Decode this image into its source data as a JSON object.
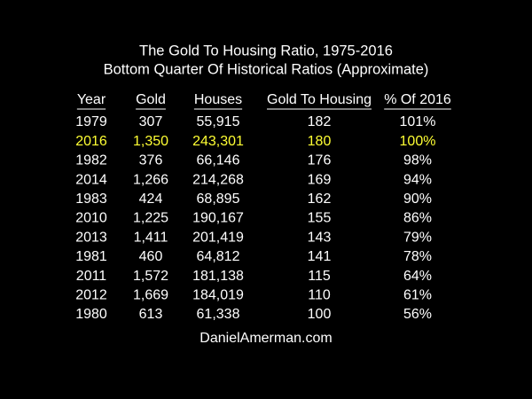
{
  "header": {
    "title": "The Gold To Housing Ratio, 1975-2016",
    "subtitle": "Bottom Quarter Of Historical Ratios (Approximate)"
  },
  "table": {
    "columns": [
      "Year",
      "Gold",
      "Houses",
      "Gold To Housing",
      "% Of 2016"
    ],
    "rows": [
      [
        "1979",
        "307",
        "55,915",
        "182",
        "101%"
      ],
      [
        "2016",
        "1,350",
        "243,301",
        "180",
        "100%"
      ],
      [
        "1982",
        "376",
        "66,146",
        "176",
        "98%"
      ],
      [
        "2014",
        "1,266",
        "214,268",
        "169",
        "94%"
      ],
      [
        "1983",
        "424",
        "68,895",
        "162",
        "90%"
      ],
      [
        "2010",
        "1,225",
        "190,167",
        "155",
        "86%"
      ],
      [
        "2013",
        "1,411",
        "201,419",
        "143",
        "79%"
      ],
      [
        "1981",
        "460",
        "64,812",
        "141",
        "78%"
      ],
      [
        "2011",
        "1,572",
        "181,138",
        "115",
        "64%"
      ],
      [
        "2012",
        "1,669",
        "184,019",
        "110",
        "61%"
      ],
      [
        "1980",
        "613",
        "61,338",
        "100",
        "56%"
      ]
    ],
    "highlight_color": "#ffff33"
  },
  "footer": {
    "source": "DanielAmerman.com"
  }
}
